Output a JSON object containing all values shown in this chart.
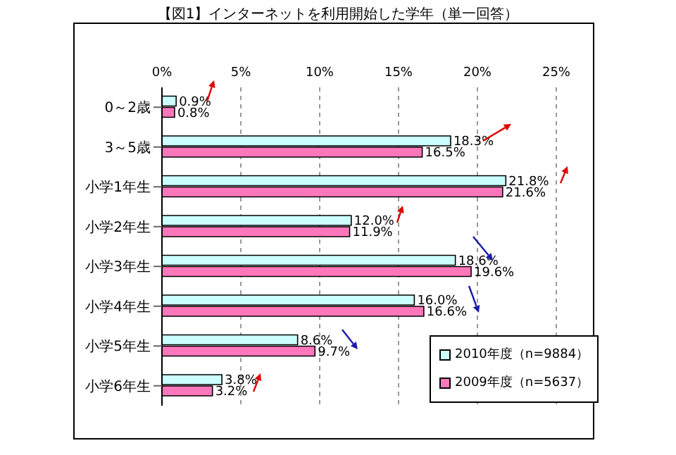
{
  "chart_data": {
    "type": "bar",
    "orientation": "horizontal",
    "title": "【図1】インターネットを利用開始した学年（単一回答）",
    "categories": [
      "0～2歳",
      "3～5歳",
      "小学1年生",
      "小学2年生",
      "小学3年生",
      "小学4年生",
      "小学5年生",
      "小学6年生"
    ],
    "series": [
      {
        "name": "2010年度（n=9884）",
        "color": "#ccffff",
        "values": [
          0.9,
          18.3,
          21.8,
          12.0,
          18.6,
          16.0,
          8.6,
          3.8
        ],
        "value_labels": [
          "0.9%",
          "18.3%",
          "21.8%",
          "12.0%",
          "18.6%",
          "16.0%",
          "8.6%",
          "3.8%"
        ]
      },
      {
        "name": "2009年度（n=5637）",
        "color": "#ff77bb",
        "values": [
          0.8,
          16.5,
          21.6,
          11.9,
          19.6,
          16.6,
          9.7,
          3.2
        ],
        "value_labels": [
          "0.8%",
          "16.5%",
          "21.6%",
          "11.9%",
          "19.6%",
          "16.6%",
          "9.7%",
          "3.2%"
        ]
      }
    ],
    "xlim": [
      0,
      25
    ],
    "xticks": [
      {
        "value": 0,
        "label": "0%"
      },
      {
        "value": 5,
        "label": "5%"
      },
      {
        "value": 10,
        "label": "10%"
      },
      {
        "value": 15,
        "label": "15%"
      },
      {
        "value": 20,
        "label": "20%"
      },
      {
        "value": 25,
        "label": "25%"
      }
    ],
    "grid": "x",
    "legend": "bottom right"
  }
}
